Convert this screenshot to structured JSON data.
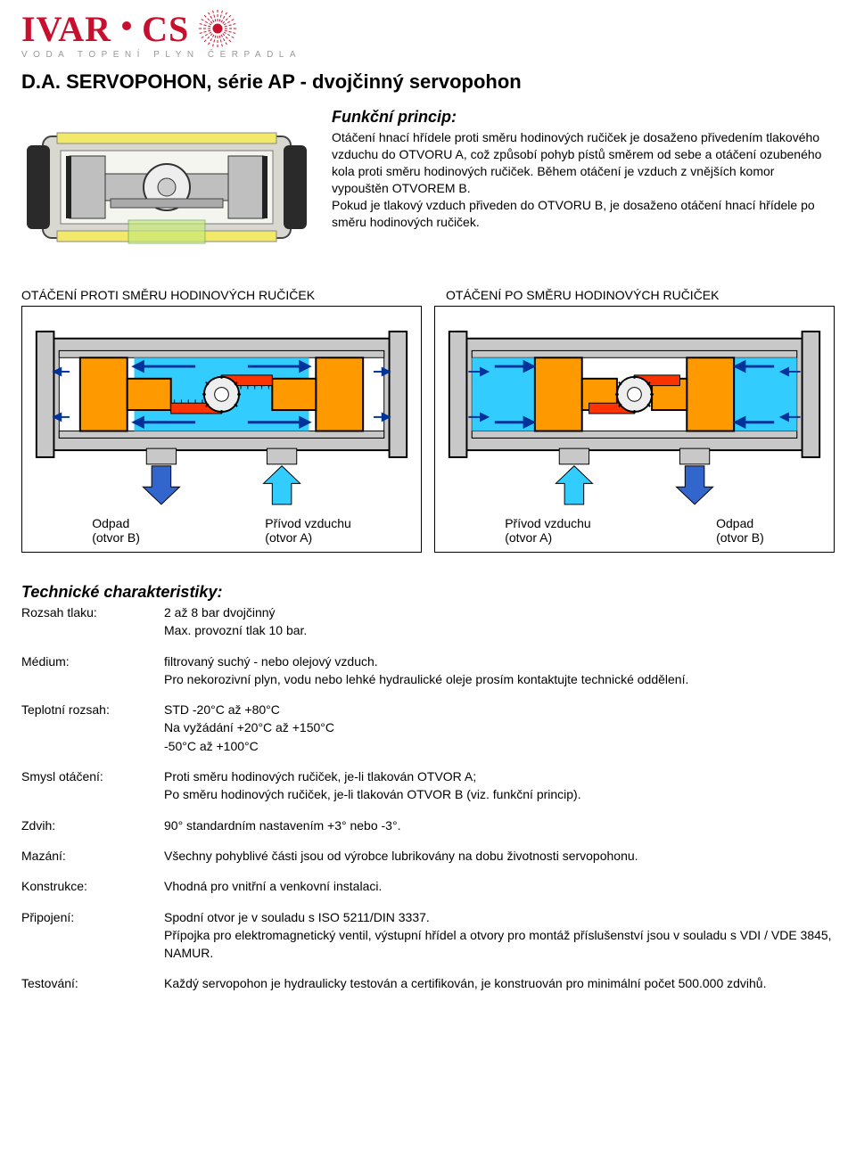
{
  "logo": {
    "text1": "IVAR",
    "text2": "CS",
    "tagline": "VODA TOPENÍ PLYN ČERPADLA",
    "accent_color": "#c8102e",
    "tagline_color": "#999999"
  },
  "title": "D.A. SERVOPOHON, série AP - dvojčinný servopohon",
  "intro": {
    "heading": "Funkční princip:",
    "body": "Otáčení hnací hřídele proti směru hodinových ručiček je dosaženo přivedením tlakového vzduchu do OTVORU A, což způsobí pohyb pístů směrem od sebe a otáčení ozubeného kola proti směru hodinových ručiček. Během otáčení je vzduch z vnějších komor vypouštěn OTVOREM B.\nPokud je tlakový vzduch přiveden do OTVORU B, je dosaženo otáčení hnací hřídele po směru hodinových ručiček."
  },
  "diagram_headers": {
    "left": "OTÁČENÍ PROTI SMĚRU HODINOVÝCH RUČIČEK",
    "right": "OTÁČENÍ PO SMĚRU HODINOVÝCH RUČIČEK"
  },
  "diagram_labels": {
    "odpad_b": "Odpad\n(otvor B)",
    "privod_a": "Přívod vzduchu\n(otvor A)"
  },
  "diagram_colors": {
    "body_outline": "#000000",
    "body_fill": "#c8c8c8",
    "cavity_fill": "#ffffff",
    "piston_fill": "#ff9900",
    "piston_stroke": "#000000",
    "rack_fill": "#ff3300",
    "air_in": "#33ccff",
    "air_out": "#3366cc",
    "gear_fill": "#eeeeee",
    "arrow_blue_dark": "#003399",
    "arrow_blue_light": "#0099ff"
  },
  "specs_heading": "Technické charakteristiky:",
  "specs": [
    {
      "label": "Rozsah tlaku:",
      "value": "2  až 8 bar   dvojčinný\nMax. provozní tlak 10 bar."
    },
    {
      "label": "Médium:",
      "value": "filtrovaný suchý - nebo olejový vzduch.\nPro nekorozivní plyn, vodu nebo lehké hydraulické oleje prosím kontaktujte technické oddělení."
    },
    {
      "label": "Teplotní rozsah:",
      "value": "STD  -20°C až +80°C\nNa vyžádání +20°C až +150°C\n                     -50°C až +100°C"
    },
    {
      "label": "Smysl otáčení:",
      "value": "Proti směru hodinových ručiček, je-li tlakován OTVOR A;\nPo směru hodinových ručiček, je-li tlakován OTVOR B   (viz. funkční princip)."
    },
    {
      "label": "Zdvih:",
      "value": "90° standardním nastavením +3° nebo -3°."
    },
    {
      "label": "Mazání:",
      "value": "Všechny pohyblivé části jsou od výrobce lubrikovány na dobu životnosti servopohonu."
    },
    {
      "label": "Konstrukce:",
      "value": "Vhodná pro vnitřní a venkovní instalaci."
    },
    {
      "label": "Připojení:",
      "value": "Spodní otvor je v souladu s ISO 5211/DIN 3337.\nPřípojka pro elektromagnetický ventil, výstupní hřídel a otvory pro montáž příslušenství jsou v souladu s VDI / VDE 3845, NAMUR."
    },
    {
      "label": "Testování:",
      "value": "Každý servopohon je hydraulicky testován a certifikován, je konstruován pro minimální počet 500.000 zdvihů."
    }
  ]
}
